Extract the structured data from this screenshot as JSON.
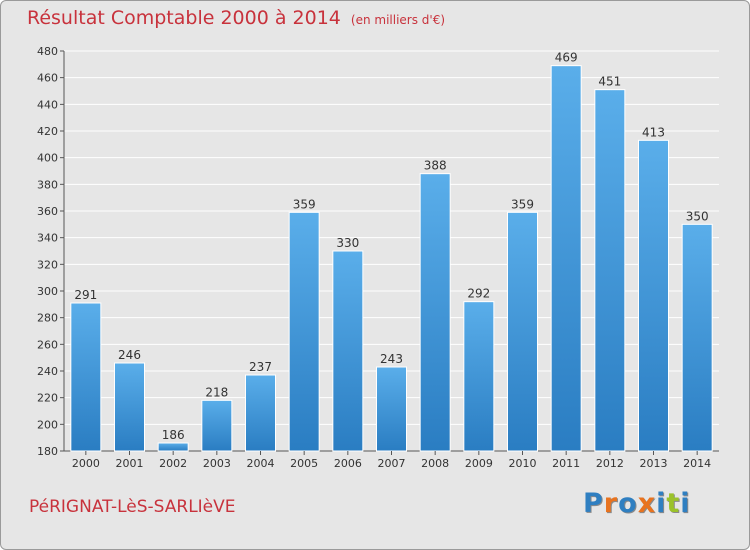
{
  "title": {
    "main": "Résultat Comptable 2000 à 2014",
    "unit": "(en milliers d'€)"
  },
  "commune": "PéRIGNAT-LèS-SARLIèVE",
  "logo": {
    "text": "Proxiti",
    "letter_colors": [
      "#2f7fc1",
      "#e8731f",
      "#2f7fc1",
      "#e8731f",
      "#2f7fc1",
      "#9bc22a",
      "#2f7fc1"
    ]
  },
  "colors": {
    "background": "#e6e6e6",
    "title": "#c8323c",
    "bar_light": "#5aaeea",
    "bar_dark": "#2a7dc2",
    "grid": "#ffffff",
    "axis_text": "#333333"
  },
  "chart_data": {
    "type": "bar",
    "categories": [
      "2000",
      "2001",
      "2002",
      "2003",
      "2004",
      "2005",
      "2006",
      "2007",
      "2008",
      "2009",
      "2010",
      "2011",
      "2012",
      "2013",
      "2014"
    ],
    "values": [
      291,
      246,
      186,
      218,
      237,
      359,
      330,
      243,
      388,
      292,
      359,
      469,
      451,
      413,
      350
    ],
    "ylim": [
      180,
      480
    ],
    "ytick_step": 20,
    "grid": true,
    "data_labels": true
  }
}
